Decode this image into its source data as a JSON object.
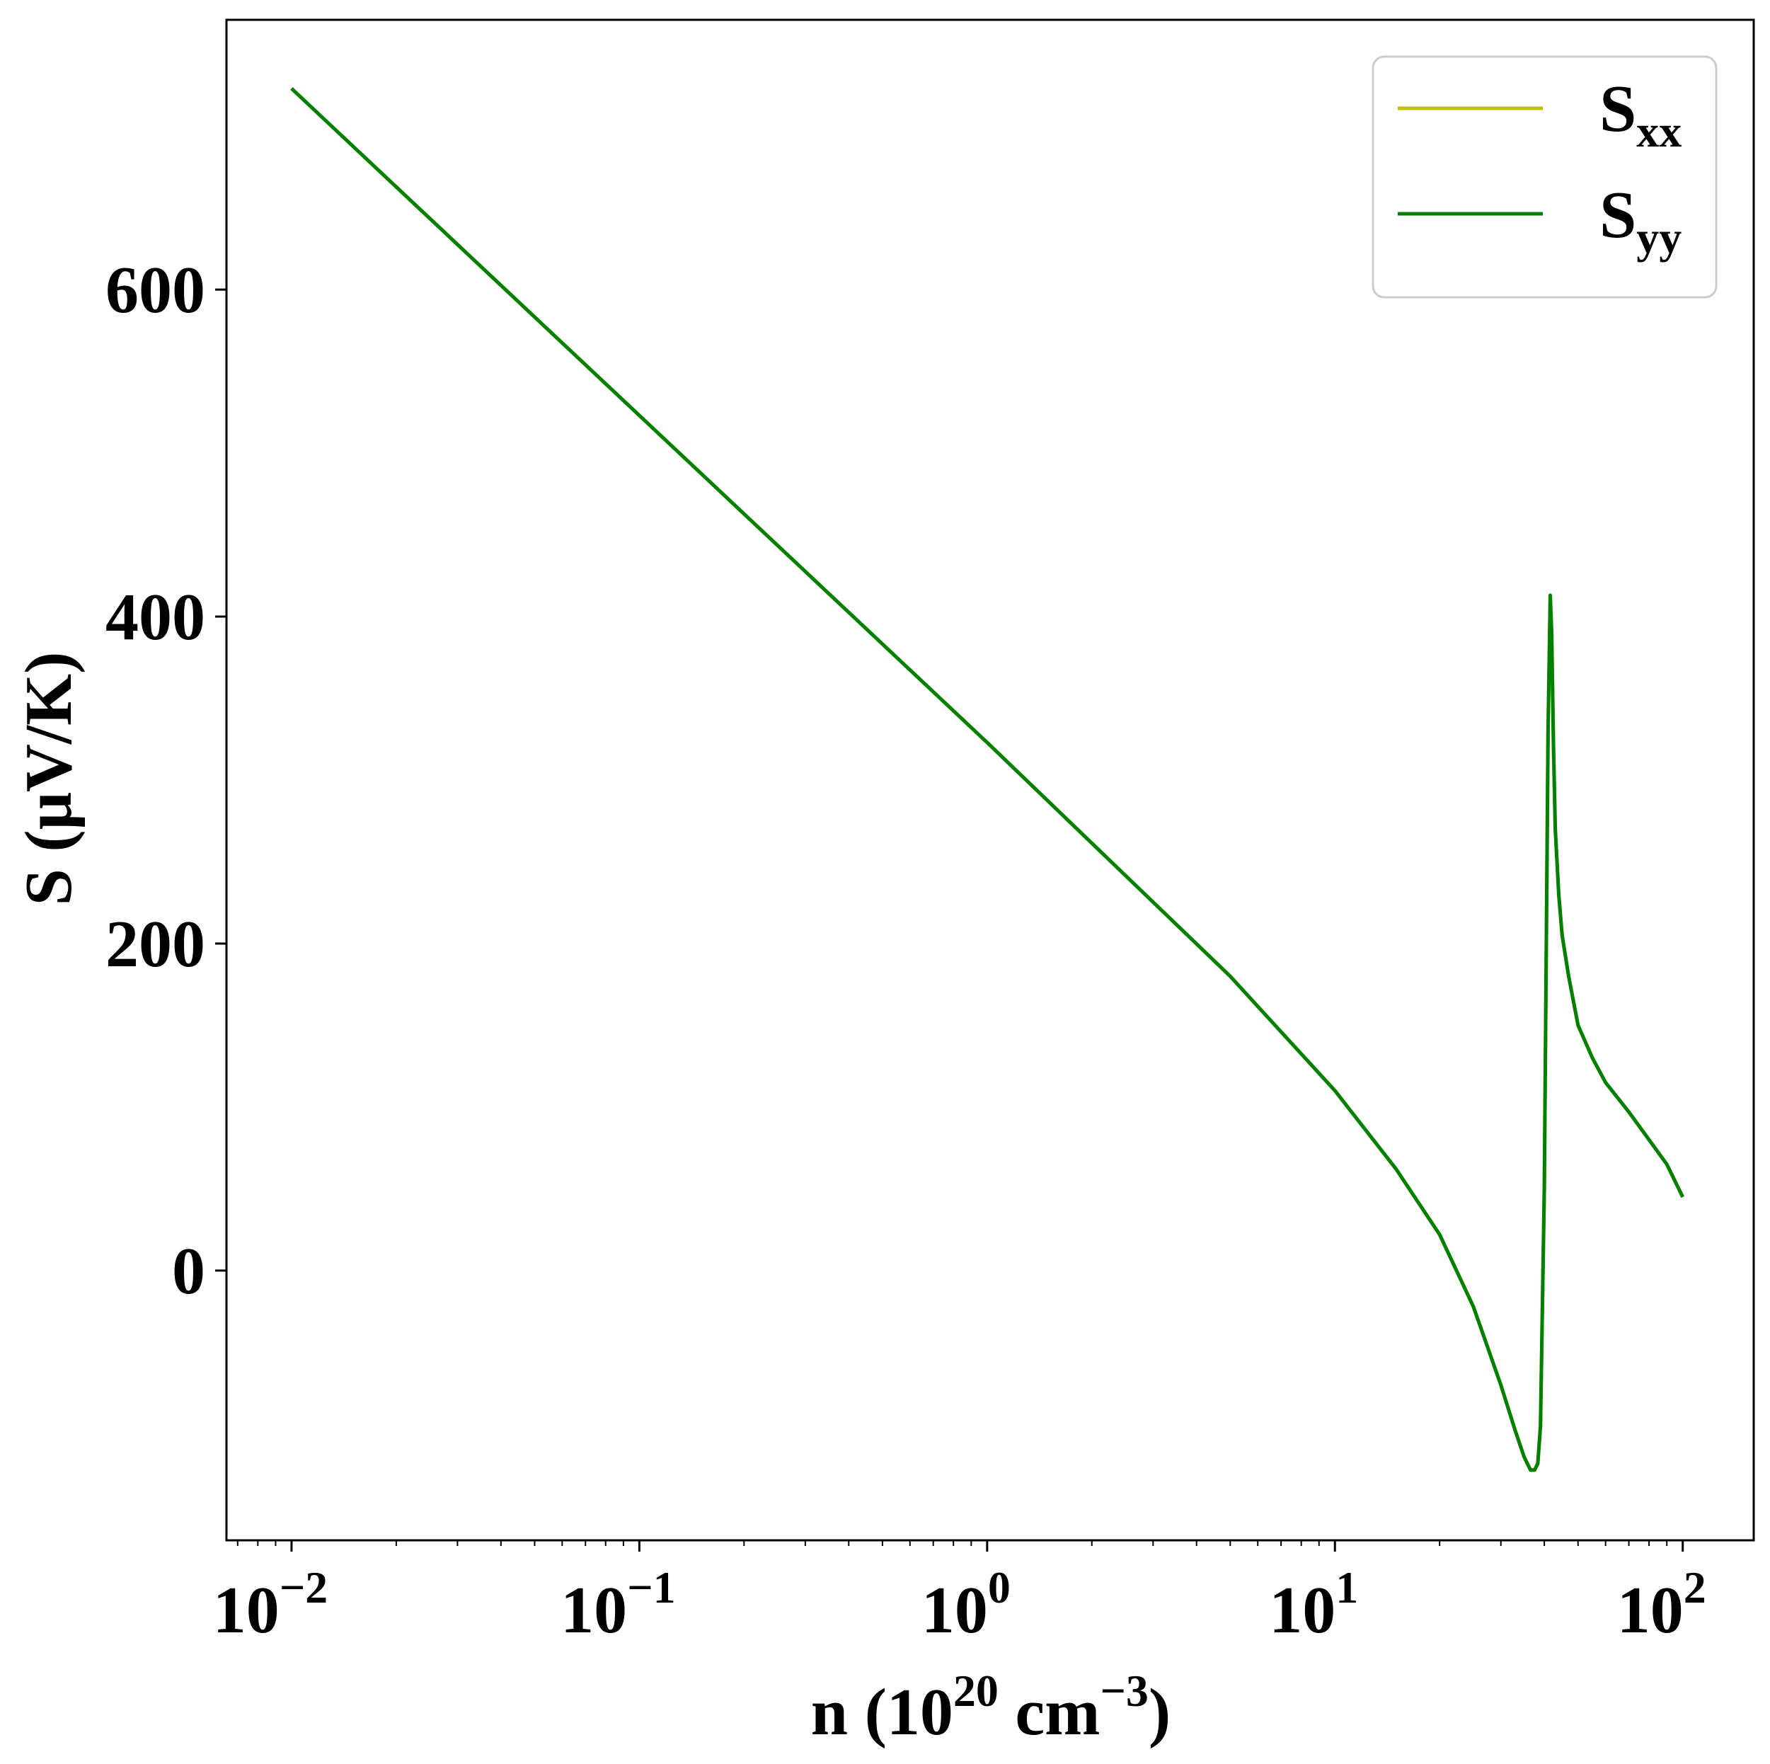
{
  "chart_data": {
    "type": "line",
    "xlabel": "n (10",
    "xlabel_exp": "20",
    "xlabel_unit": " cm",
    "xlabel_unit_exp": "−3",
    "xlabel_close": ")",
    "ylabel": "S (μV/K)",
    "xscale": "log",
    "xlim": [
      0.0065,
      160
    ],
    "ylim": [
      -165,
      765
    ],
    "x_ticks": [
      {
        "value": 0.01,
        "base": "10",
        "exp": "−2"
      },
      {
        "value": 0.1,
        "base": "10",
        "exp": "−1"
      },
      {
        "value": 1,
        "base": "10",
        "exp": "0"
      },
      {
        "value": 10,
        "base": "10",
        "exp": "1"
      },
      {
        "value": 100,
        "base": "10",
        "exp": "2"
      }
    ],
    "y_ticks": [
      0,
      200,
      400,
      600
    ],
    "grid": false,
    "legend_position": "top-right",
    "series": [
      {
        "name": "S",
        "subscript": "xx",
        "color": "#bfbf00",
        "x": [
          0.01,
          0.1,
          1,
          5,
          10,
          15,
          20,
          25,
          30,
          33,
          35,
          36.5,
          37.5,
          38.3,
          39,
          40,
          41,
          41.6,
          42,
          42.5,
          43,
          44,
          45,
          47,
          50,
          55,
          60,
          70,
          80,
          90,
          100
        ],
        "y": [
          723,
          523,
          323,
          180,
          110,
          62,
          22,
          -22,
          -70,
          -98,
          -114,
          -122,
          -122,
          -118,
          -95,
          50,
          330,
          413,
          390,
          320,
          270,
          230,
          205,
          180,
          150,
          130,
          115,
          97,
          80,
          65,
          45
        ]
      },
      {
        "name": "S",
        "subscript": "yy",
        "color": "#008000",
        "x": [
          0.01,
          0.1,
          1,
          5,
          10,
          15,
          20,
          25,
          30,
          33,
          35,
          36.5,
          37.5,
          38.3,
          39,
          40,
          41,
          41.6,
          42,
          42.5,
          43,
          44,
          45,
          47,
          50,
          55,
          60,
          70,
          80,
          90,
          100
        ],
        "y": [
          723,
          523,
          323,
          180,
          110,
          62,
          22,
          -22,
          -70,
          -98,
          -114,
          -122,
          -122,
          -118,
          -95,
          50,
          330,
          413,
          390,
          320,
          270,
          230,
          205,
          180,
          150,
          130,
          115,
          97,
          80,
          65,
          45
        ]
      }
    ]
  }
}
